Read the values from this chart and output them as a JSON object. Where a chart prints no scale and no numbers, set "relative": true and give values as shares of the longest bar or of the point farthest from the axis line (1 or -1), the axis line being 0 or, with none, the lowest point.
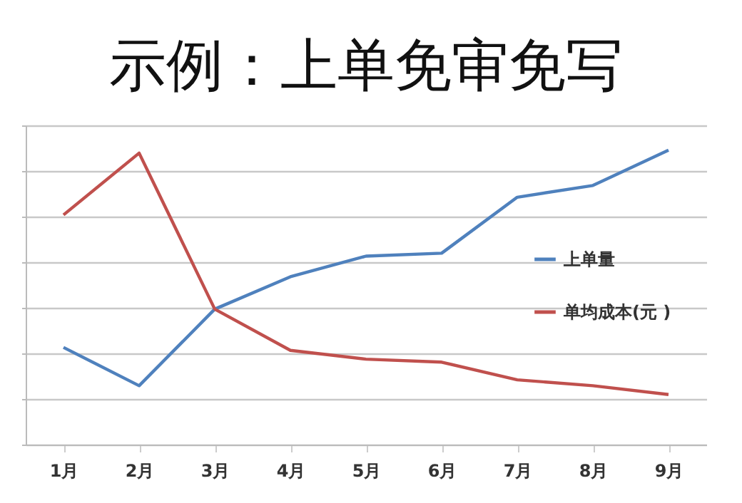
{
  "chart_data": {
    "type": "line",
    "title": "示例：上单免审免写",
    "relative": true,
    "categories": [
      "1月",
      "2月",
      "3月",
      "4月",
      "5月",
      "6月",
      "7月",
      "8月",
      "9月"
    ],
    "series": [
      {
        "name": "上单量",
        "color": "#4f81bd",
        "values": [
          0.33,
          0.2,
          0.46,
          0.57,
          0.64,
          0.65,
          0.84,
          0.88,
          1
        ]
      },
      {
        "name": "单均成本(元 )",
        "color": "#c0504d",
        "values": [
          0.78,
          0.99,
          0.46,
          0.32,
          0.29,
          0.28,
          0.22,
          0.2,
          0.17
        ]
      }
    ],
    "grid": "y",
    "legend": "right"
  }
}
